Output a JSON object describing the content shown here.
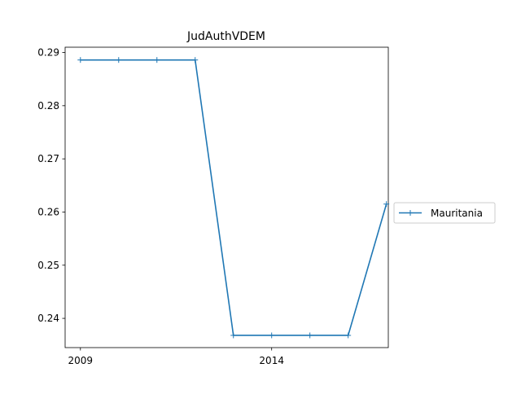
{
  "chart_data": {
    "type": "line",
    "title": "JudAuthVDEM",
    "xlabel": "",
    "ylabel": "",
    "x": [
      2009,
      2010,
      2011,
      2012,
      2013,
      2014,
      2015,
      2016,
      2017
    ],
    "series": [
      {
        "name": "Mauritania",
        "values": [
          0.2886,
          0.2886,
          0.2886,
          0.2886,
          0.2368,
          0.2368,
          0.2368,
          0.2368,
          0.2615
        ],
        "color": "#1f77b4",
        "marker": "+"
      }
    ],
    "x_ticks": [
      2009,
      2014
    ],
    "x_tick_labels": [
      "2009",
      "2014"
    ],
    "y_ticks": [
      0.24,
      0.25,
      0.26,
      0.27,
      0.28,
      0.29
    ],
    "y_tick_labels": [
      "0.24",
      "0.25",
      "0.26",
      "0.27",
      "0.28",
      "0.29"
    ],
    "xlim": [
      2008.6,
      2017.05
    ],
    "ylim": [
      0.2345,
      0.291
    ],
    "grid": false,
    "legend_position": "outside-right"
  }
}
